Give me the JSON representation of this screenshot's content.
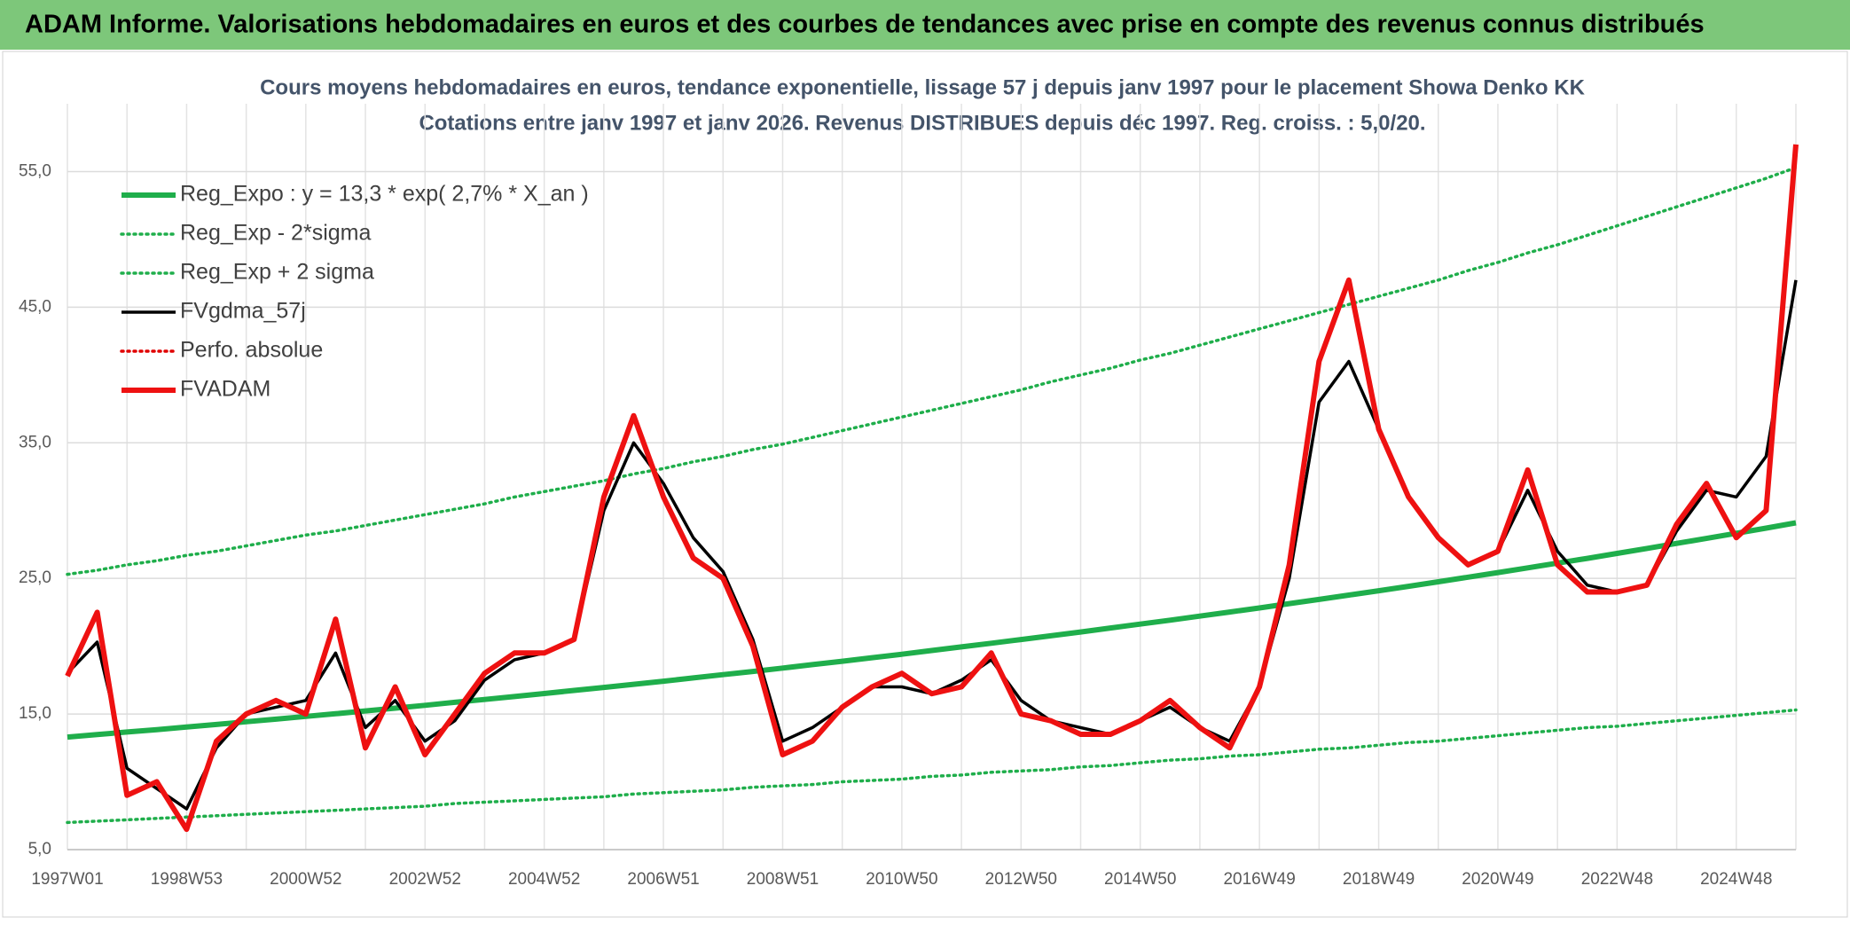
{
  "header": {
    "title": "ADAM Informe. Valorisations hebdomadaires en euros et des courbes de tendances avec prise en compte des revenus connus distribués"
  },
  "chart_data": {
    "type": "line",
    "title": "Cours moyens hebdomadaires en euros, tendance exponentielle, lissage 57 j depuis janv 1997 pour le placement Showa Denko KK",
    "subtitle": "Cotations entre janv 1997 et janv 2026. Revenus DISTRIBUES depuis déc 1997. Reg. croiss. : 5,0/20.",
    "categories": [
      "1997W01",
      null,
      null,
      null,
      "1998W53",
      null,
      null,
      null,
      "2000W52",
      null,
      null,
      null,
      "2002W52",
      null,
      null,
      null,
      "2004W52",
      null,
      null,
      null,
      "2006W51",
      null,
      null,
      null,
      "2008W51",
      null,
      null,
      null,
      "2010W50",
      null,
      null,
      null,
      "2012W50",
      null,
      null,
      null,
      "2014W50",
      null,
      null,
      null,
      "2016W49",
      null,
      null,
      null,
      "2018W49",
      null,
      null,
      null,
      "2020W49",
      null,
      null,
      null,
      "2022W48",
      null,
      null,
      null,
      "2024W48",
      null,
      null
    ],
    "ylim": [
      5,
      60
    ],
    "yticks": [
      {
        "value": 5,
        "label": "5,0"
      },
      {
        "value": 15,
        "label": "15,0"
      },
      {
        "value": 25,
        "label": "25,0"
      },
      {
        "value": 35,
        "label": "35,0"
      },
      {
        "value": 45,
        "label": "45,0"
      },
      {
        "value": 55,
        "label": "55,0"
      }
    ],
    "grid": true,
    "legend": "upper left",
    "series": [
      {
        "name": "Reg_Expo : y = 13,3 * exp( 2,7% *  X_an )",
        "color": "#1fae4b",
        "line_style": "thick",
        "values": [
          13.3,
          13.48,
          13.67,
          13.85,
          14.04,
          14.23,
          14.43,
          14.62,
          14.82,
          15.02,
          15.23,
          15.43,
          15.64,
          15.86,
          16.07,
          16.29,
          16.51,
          16.74,
          16.96,
          17.19,
          17.42,
          17.66,
          17.9,
          18.14,
          18.39,
          18.64,
          18.89,
          19.15,
          19.41,
          19.68,
          19.95,
          20.22,
          20.49,
          20.77,
          21.05,
          21.34,
          21.63,
          21.92,
          22.22,
          22.52,
          22.82,
          23.14,
          23.45,
          23.77,
          24.09,
          24.42,
          24.75,
          25.09,
          25.43,
          25.78,
          26.13,
          26.48,
          26.84,
          27.21,
          27.58,
          27.95,
          28.33,
          28.71,
          29.1
        ]
      },
      {
        "name": "Reg_Exp - 2*sigma",
        "color": "#1fae4b",
        "line_style": "dotted",
        "values": [
          7.0,
          7.1,
          7.2,
          7.3,
          7.4,
          7.5,
          7.6,
          7.7,
          7.8,
          7.9,
          8.0,
          8.1,
          8.2,
          8.4,
          8.5,
          8.6,
          8.7,
          8.8,
          8.9,
          9.1,
          9.2,
          9.3,
          9.4,
          9.6,
          9.7,
          9.8,
          10.0,
          10.1,
          10.2,
          10.4,
          10.5,
          10.7,
          10.8,
          10.9,
          11.1,
          11.2,
          11.4,
          11.6,
          11.7,
          11.9,
          12.0,
          12.2,
          12.4,
          12.5,
          12.7,
          12.9,
          13.0,
          13.2,
          13.4,
          13.6,
          13.8,
          14.0,
          14.1,
          14.3,
          14.5,
          14.7,
          14.9,
          15.1,
          15.3
        ]
      },
      {
        "name": "Reg_Exp + 2 sigma",
        "color": "#1fae4b",
        "line_style": "dotted",
        "values": [
          25.3,
          25.6,
          26.0,
          26.3,
          26.7,
          27.0,
          27.4,
          27.8,
          28.2,
          28.5,
          28.9,
          29.3,
          29.7,
          30.1,
          30.5,
          31.0,
          31.4,
          31.8,
          32.2,
          32.7,
          33.1,
          33.6,
          34.0,
          34.5,
          34.9,
          35.4,
          35.9,
          36.4,
          36.9,
          37.4,
          37.9,
          38.4,
          38.9,
          39.5,
          40.0,
          40.5,
          41.1,
          41.6,
          42.2,
          42.8,
          43.4,
          44.0,
          44.6,
          45.2,
          45.8,
          46.4,
          47.0,
          47.7,
          48.3,
          49.0,
          49.6,
          50.3,
          51.0,
          51.7,
          52.4,
          53.1,
          53.8,
          54.5,
          55.3
        ]
      },
      {
        "name": "FVgdma_57j",
        "color": "#000000",
        "line_style": "solid",
        "values": [
          18,
          20.3,
          11,
          9.5,
          8,
          12.5,
          15,
          15.5,
          16,
          19.5,
          14,
          16,
          13,
          14.5,
          17.5,
          19,
          19.5,
          20.5,
          30,
          35,
          32,
          28,
          25.5,
          20.5,
          13,
          14,
          15.5,
          17,
          17,
          16.5,
          17.5,
          19,
          16,
          14.5,
          14,
          13.5,
          14.5,
          15.5,
          14,
          13,
          17,
          25,
          38,
          41,
          36,
          31,
          28,
          26,
          27,
          31.5,
          27,
          24.5,
          24,
          24.5,
          28.5,
          31.5,
          31,
          34,
          47
        ]
      },
      {
        "name": "Perfo. absolue",
        "color": "#e00000",
        "line_style": "dotted",
        "values": [
          null,
          null,
          null,
          null,
          null,
          null,
          null,
          null,
          null,
          null,
          null,
          null,
          null,
          null,
          null,
          null,
          null,
          null,
          null,
          null,
          null,
          null,
          null,
          null,
          null,
          null,
          null,
          null,
          null,
          null,
          null,
          null,
          null,
          null,
          null,
          null,
          null,
          null,
          null,
          null,
          null,
          null,
          null,
          null,
          null,
          null,
          null,
          null,
          null,
          null,
          null,
          null,
          null,
          null,
          null,
          null,
          null,
          null,
          null
        ]
      },
      {
        "name": "FVADAM",
        "color": "#ee1111",
        "line_style": "thick",
        "values": [
          17.8,
          22.5,
          9,
          10,
          6.5,
          13,
          15,
          16,
          15,
          22,
          12.5,
          17,
          12,
          15,
          18,
          19.5,
          19.5,
          20.5,
          31,
          37,
          31,
          26.5,
          25,
          20,
          12,
          13,
          15.5,
          17,
          18,
          16.5,
          17,
          19.5,
          15,
          14.5,
          13.5,
          13.5,
          14.5,
          16,
          14,
          12.5,
          17,
          26,
          41,
          47,
          36,
          31,
          28,
          26,
          27,
          33,
          26,
          24,
          24,
          24.5,
          29,
          32,
          28,
          30,
          57
        ]
      }
    ]
  }
}
